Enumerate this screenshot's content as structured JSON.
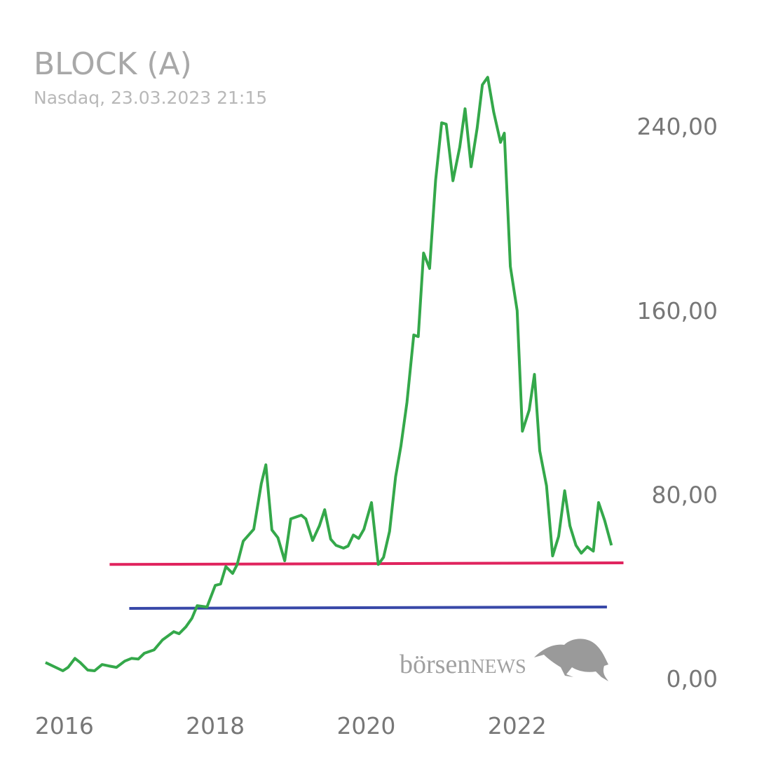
{
  "chart_data": {
    "type": "line",
    "title": "BLOCK (A)",
    "subtitle": "Nasdaq, 23.03.2023 21:15",
    "watermark": {
      "prefix": "börsen",
      "suffix": "NEWS"
    },
    "x": [
      2015.75,
      2015.98,
      2016.05,
      2016.14,
      2016.21,
      2016.31,
      2016.4,
      2016.5,
      2016.59,
      2016.69,
      2016.8,
      2016.89,
      2016.98,
      2017.06,
      2017.19,
      2017.3,
      2017.45,
      2017.52,
      2017.61,
      2017.69,
      2017.76,
      2017.89,
      2018.0,
      2018.07,
      2018.14,
      2018.23,
      2018.29,
      2018.37,
      2018.51,
      2018.61,
      2018.67,
      2018.75,
      2018.83,
      2018.92,
      2019.0,
      2019.14,
      2019.2,
      2019.29,
      2019.38,
      2019.45,
      2019.53,
      2019.6,
      2019.7,
      2019.76,
      2019.83,
      2019.9,
      2019.97,
      2020.07,
      2020.16,
      2020.23,
      2020.31,
      2020.39,
      2020.46,
      2020.54,
      2020.63,
      2020.69,
      2020.76,
      2020.84,
      2020.92,
      2021.0,
      2021.06,
      2021.15,
      2021.24,
      2021.31,
      2021.39,
      2021.47,
      2021.54,
      2021.61,
      2021.69,
      2021.78,
      2021.83,
      2021.91,
      2022.0,
      2022.07,
      2022.16,
      2022.23,
      2022.3,
      2022.39,
      2022.47,
      2022.55,
      2022.63,
      2022.7,
      2022.78,
      2022.85,
      2022.93,
      2023.01,
      2023.08,
      2023.16,
      2023.25
    ],
    "series": [
      {
        "color": "#34a84a",
        "values": [
          7.0,
          3.4,
          4.9,
          8.8,
          7.0,
          3.7,
          3.4,
          6.1,
          5.5,
          4.9,
          7.6,
          8.8,
          8.5,
          11.0,
          12.5,
          16.8,
          20.4,
          19.5,
          22.5,
          26.2,
          31.7,
          31.1,
          40.5,
          41.1,
          48.7,
          45.7,
          49.6,
          59.7,
          64.9,
          84.7,
          92.9,
          64.6,
          61.2,
          51.2,
          69.4,
          71.0,
          69.4,
          60.0,
          66.4,
          73.4,
          60.6,
          57.9,
          56.7,
          57.6,
          62.4,
          60.9,
          64.9,
          76.5,
          49.6,
          52.7,
          64.0,
          87.7,
          101.1,
          120.0,
          149.3,
          148.6,
          184.9,
          178.2,
          216.6,
          241.5,
          240.9,
          216.3,
          230.9,
          247.6,
          222.4,
          239.1,
          258.0,
          261.3,
          246.1,
          233.0,
          237.0,
          179.1,
          159.9,
          107.5,
          116.7,
          132.2,
          99.0,
          83.8,
          53.3,
          61.8,
          81.6,
          66.4,
          57.9,
          54.5,
          57.3,
          55.4,
          76.5,
          68.8,
          57.9
        ]
      }
    ],
    "lines": [
      {
        "color": "#e0245e",
        "x": [
          2016.6,
          2023.41
        ],
        "values": [
          49.6,
          50.3
        ]
      },
      {
        "color": "#3848a8",
        "x": [
          2016.86,
          2023.19
        ],
        "values": [
          30.5,
          31.1
        ]
      }
    ],
    "xlim": [
      2015.5,
      2023.6
    ],
    "xticks": [
      2016,
      2018,
      2020,
      2022
    ],
    "ylim": [
      -10,
      270
    ],
    "yticks": [
      {
        "value": 0,
        "label": "0,00"
      },
      {
        "value": 80,
        "label": "80,00"
      },
      {
        "value": 160,
        "label": "160,00"
      },
      {
        "value": 240,
        "label": "240,00"
      }
    ],
    "grid": false
  }
}
